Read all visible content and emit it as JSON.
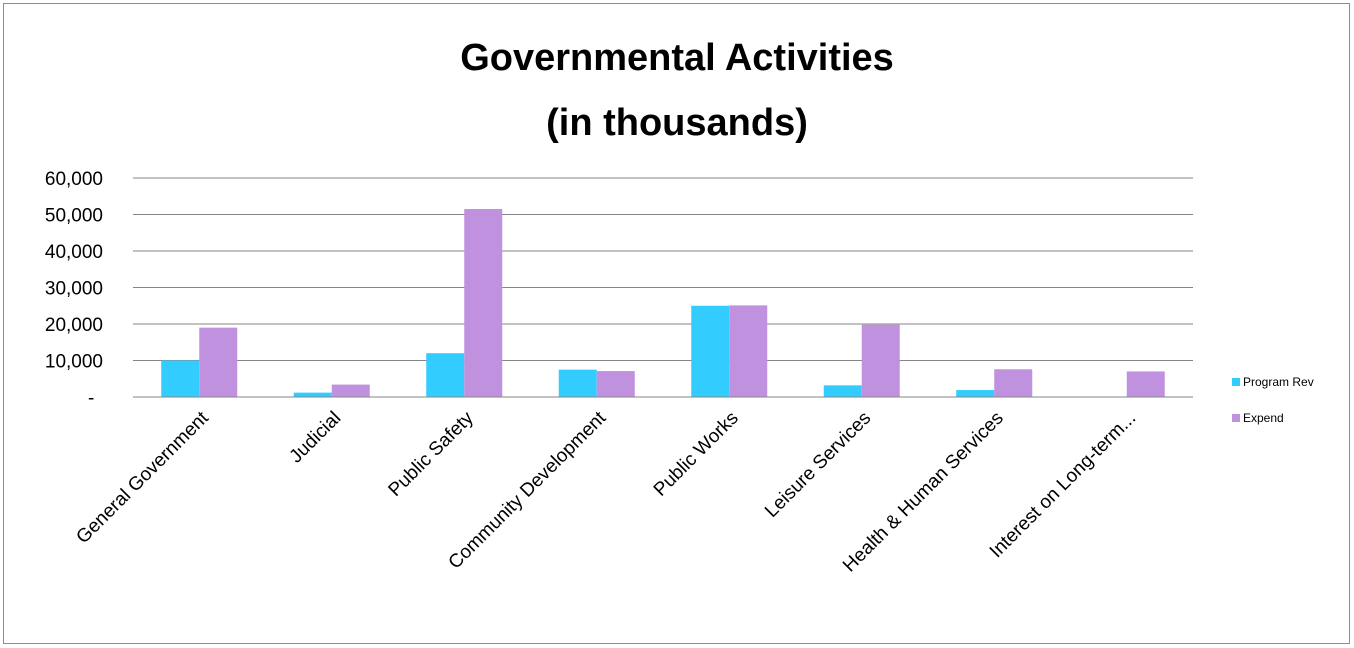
{
  "chart_data": {
    "type": "bar",
    "title": [
      "Governmental Activities",
      "(in thousands)"
    ],
    "categories": [
      "General Government",
      "Judicial",
      "Public Safety",
      "Community Development",
      "Public Works",
      "Leisure Services",
      "Health & Human Services",
      "Interest on Long-term..."
    ],
    "series": [
      {
        "name": "Program Rev",
        "color": "#33ccff",
        "values": [
          10000,
          1200,
          12000,
          7500,
          25000,
          3200,
          1900,
          0
        ]
      },
      {
        "name": "Expend",
        "color": "#bf91df",
        "values": [
          19000,
          3400,
          51500,
          7100,
          25100,
          19800,
          7600,
          7000
        ]
      }
    ],
    "ylim": [
      0,
      60000
    ],
    "yticks": [
      0,
      10000,
      20000,
      30000,
      40000,
      50000,
      60000
    ],
    "ytick_labels": [
      "-",
      "10,000",
      "20,000",
      "30,000",
      "40,000",
      "50,000",
      "60,000"
    ],
    "grid": true,
    "legend_position": "right"
  }
}
